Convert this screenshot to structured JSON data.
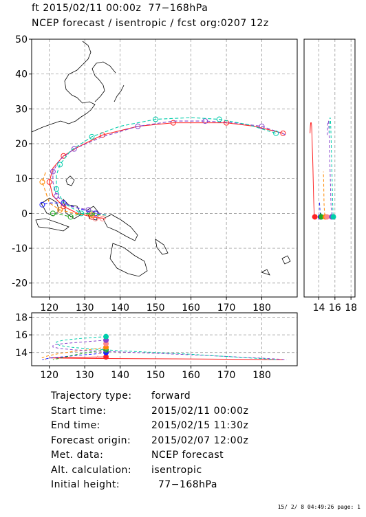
{
  "header": {
    "line1": "ft 2015/02/11 00:00z  77−168hPa",
    "line2": "NCEP forecast / isentropic / fcst org:0207 12z"
  },
  "chart_data": [
    {
      "type": "line",
      "panel": "map",
      "xlim": [
        115,
        190
      ],
      "ylim": [
        -24,
        50
      ],
      "x_ticks": [
        120,
        130,
        140,
        150,
        160,
        170,
        180
      ],
      "y_ticks": [
        -20,
        -10,
        0,
        10,
        20,
        30,
        40,
        50
      ],
      "grid": true,
      "series": [
        {
          "color": "#ff2222",
          "x": [
            136,
            132,
            128,
            124,
            121,
            120,
            121,
            124,
            128,
            135,
            145,
            155,
            163,
            170,
            178,
            186
          ],
          "y": [
            -1.5,
            -1,
            0,
            2,
            5,
            9,
            13,
            16.5,
            19,
            22.5,
            25,
            26,
            26,
            26,
            25,
            23
          ]
        },
        {
          "color": "#2222ff",
          "x": [
            136,
            133,
            128,
            124,
            120,
            118
          ],
          "y": [
            -0.5,
            0,
            1.5,
            3,
            3,
            2.5
          ]
        },
        {
          "color": "#22aa22",
          "x": [
            136,
            132,
            129,
            126,
            124,
            121
          ],
          "y": [
            -0.5,
            0,
            0,
            -1,
            -0.5,
            0
          ]
        },
        {
          "color": "#ff8800",
          "x": [
            136,
            132,
            127,
            123,
            120,
            118,
            119
          ],
          "y": [
            -0.5,
            -0.5,
            0,
            1,
            3,
            9,
            12
          ]
        },
        {
          "color": "#ff8888",
          "x": [
            136,
            135,
            134,
            133
          ],
          "y": [
            -1.5,
            -1.5,
            -1.5,
            -1.5
          ]
        },
        {
          "color": "#8844cc",
          "x": [
            136,
            131,
            126,
            122,
            121,
            121,
            123,
            127,
            135,
            145,
            155,
            164,
            172,
            180,
            187
          ],
          "y": [
            -0.5,
            1,
            2,
            5,
            9,
            12,
            15.5,
            18.5,
            22,
            25,
            26.5,
            26.5,
            26,
            25,
            22.5
          ]
        },
        {
          "color": "#00ccaa",
          "x": [
            136,
            129,
            124,
            122,
            122,
            123,
            126,
            132,
            140,
            150,
            160,
            168,
            176,
            184
          ],
          "y": [
            -0.5,
            0,
            3,
            7,
            11,
            14,
            18,
            22,
            25,
            27,
            27.5,
            27,
            25.5,
            23
          ]
        }
      ]
    },
    {
      "type": "line",
      "panel": "latitude_vs_height",
      "x_ticks": [
        14,
        16,
        18
      ],
      "ylim": [
        -24,
        50
      ]
    },
    {
      "type": "line",
      "panel": "longitude_vs_height",
      "xlim": [
        115,
        190
      ],
      "ylim": [
        12.5,
        18.5
      ],
      "x_ticks": [
        120,
        130,
        140,
        150,
        160,
        170,
        180
      ],
      "y_ticks": [
        14,
        16,
        18
      ]
    }
  ],
  "info": {
    "rows": [
      {
        "key": "Trajectory type:",
        "value": "forward"
      },
      {
        "key": "Start time:",
        "value": "2015/02/11 00:00z"
      },
      {
        "key": "End time:",
        "value": "2015/02/15 11:30z"
      },
      {
        "key": "Forecast origin:",
        "value": "2015/02/07 12:00z"
      },
      {
        "key": "Met. data:",
        "value": "NCEP forecast"
      },
      {
        "key": "Alt. calculation:",
        "value": "isentropic"
      },
      {
        "key": "Initial height:",
        "value": "  77−168hPa"
      }
    ]
  },
  "footer": "15/ 2/ 8 04:49:26 page: 1"
}
